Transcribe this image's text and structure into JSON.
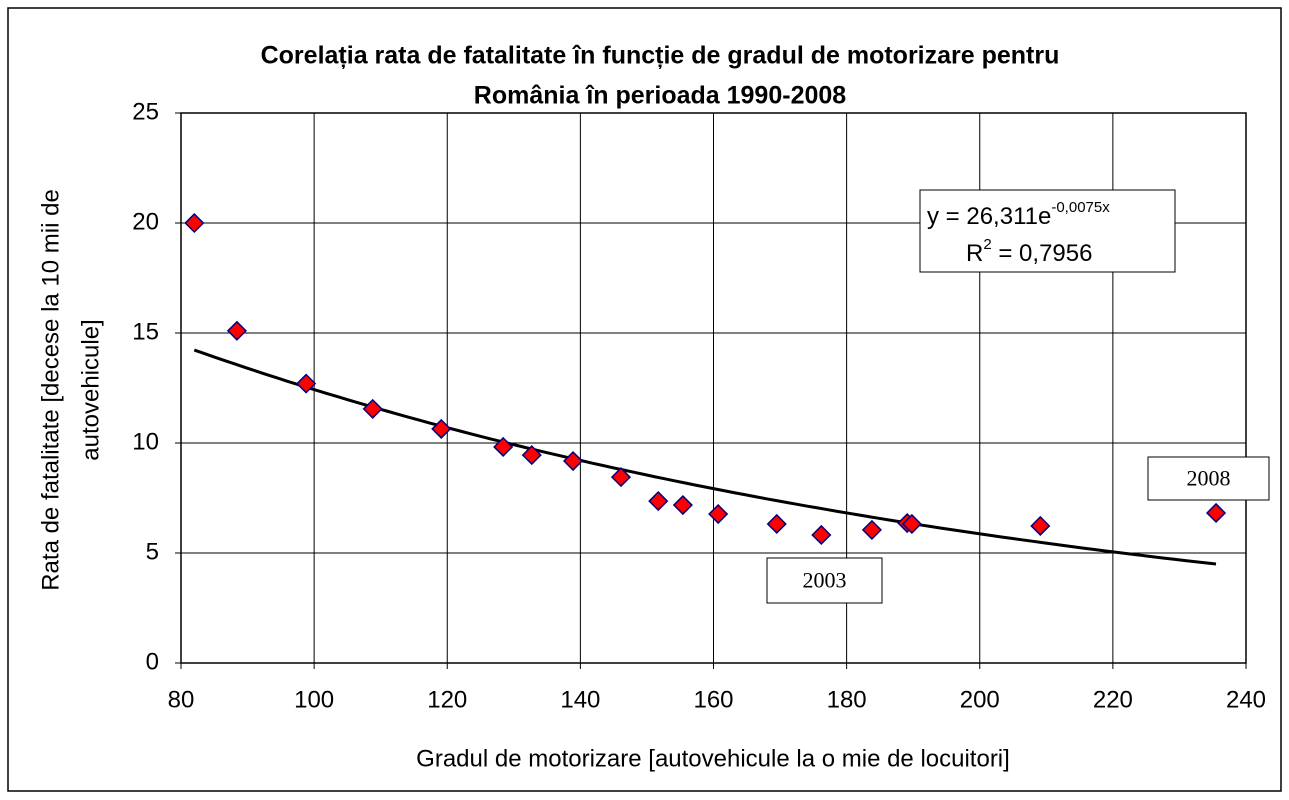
{
  "chart_data": {
    "type": "scatter",
    "title": [
      "Corelația rata de fatalitate în funcție de gradul de motorizare pentru",
      "România în perioada 1990-2008"
    ],
    "x_label": "Gradul de motorizare [autovehicule la o mie de locuitori]",
    "y_label": [
      "Rata de fatalitate [decese la 10 mii de",
      "autovehicule]"
    ],
    "x": [
      82,
      88.4,
      98.8,
      108.8,
      119.1,
      128.4,
      132.7,
      138.9,
      146.1,
      151.7,
      155.4,
      160.7,
      169.5,
      176.2,
      183.8,
      189.1,
      189.8,
      209.1,
      235.5
    ],
    "values": [
      20,
      15.1,
      12.7,
      11.55,
      10.64,
      9.82,
      9.45,
      9.18,
      8.45,
      7.36,
      7.18,
      6.77,
      6.32,
      5.82,
      6.05,
      6.36,
      6.32,
      6.23,
      6.82
    ],
    "color": "#ff0000",
    "edge_color": "#000080",
    "trendline": {
      "color": "#000000",
      "coefficient": {
        "value": 26.311,
        "label": "26,311"
      },
      "exponent": {
        "value": -0.0075,
        "label": "-0,0075"
      },
      "r_squared": {
        "value": 0.7956,
        "label": "0,7956"
      },
      "equation": {
        "prefix": "y = ",
        "base": "e",
        "variable": "x",
        "r": "R",
        "power": "2",
        "equals": " = "
      }
    },
    "annotations": [
      {
        "text": "2003",
        "x": 176.2,
        "y": 5.82
      },
      {
        "text": "2008",
        "x": 235.5,
        "y": 6.82
      }
    ],
    "xlim": [
      80,
      240
    ],
    "xticks": [
      80,
      100,
      120,
      140,
      160,
      180,
      200,
      220,
      240
    ],
    "ylim": [
      0,
      25
    ],
    "yticks": [
      0,
      5,
      10,
      15,
      20,
      25
    ],
    "grid": true
  }
}
